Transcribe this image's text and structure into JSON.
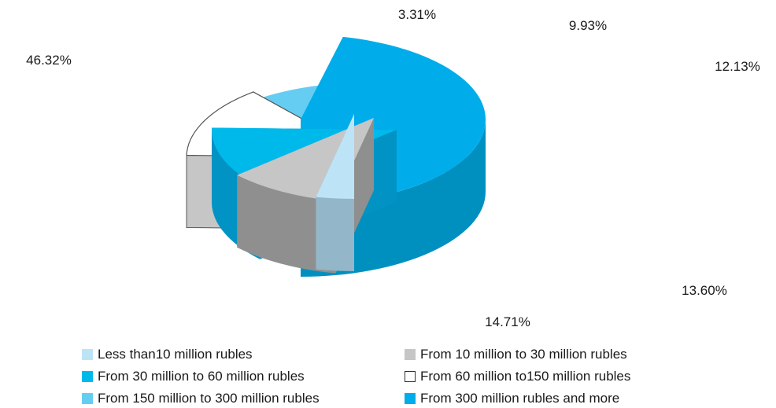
{
  "chart_data": {
    "type": "pie",
    "title": "",
    "slices": [
      {
        "label": "Less than10 million rubles",
        "value": 3.31,
        "value_label": "3.31%",
        "color": "#bde4f6"
      },
      {
        "label": "From 10 million to 30 million rubles",
        "value": 9.93,
        "value_label": "9.93%",
        "color": "#c6c6c6"
      },
      {
        "label": "From 30 million to 60 million rubles",
        "value": 12.13,
        "value_label": "12.13%",
        "color": "#00b9eb"
      },
      {
        "label": "From 60 million to150 million rubles",
        "value": 13.6,
        "value_label": "13.60%",
        "color": "#ffffff"
      },
      {
        "label": "From 150 million to 300 million rubles",
        "value": 14.71,
        "value_label": "14.71%",
        "color": "#66cdf2"
      },
      {
        "label": "From 300 million rubles and more",
        "value": 46.32,
        "value_label": "46.32%",
        "color": "#00adea"
      }
    ],
    "legend_position": "bottom",
    "style": "3d-exploded"
  },
  "legend": [
    {
      "label": "Less than10 million rubles",
      "color": "#bde4f6"
    },
    {
      "label": "From 10 million to 30 million rubles",
      "color": "#c6c6c6"
    },
    {
      "label": "From 30 million to 60 million rubles",
      "color": "#00b9eb"
    },
    {
      "label": "From 60 million to150 million rubles",
      "color": "#ffffff"
    },
    {
      "label": "From 150 million to 300 million rubles",
      "color": "#66cdf2"
    },
    {
      "label": "From 300 million rubles and more",
      "color": "#00adea"
    }
  ]
}
